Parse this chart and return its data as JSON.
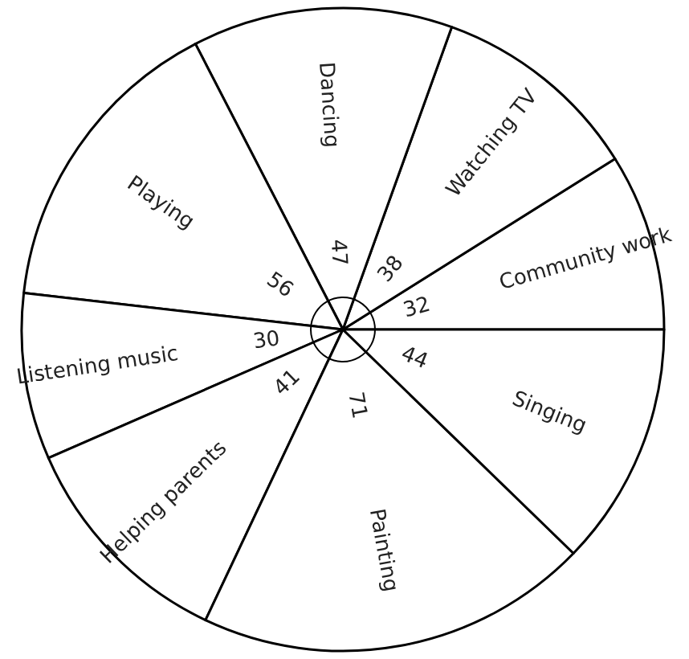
{
  "chart_data": {
    "type": "pie",
    "categories": [
      "Community work",
      "Watching TV",
      "Dancing",
      "Playing",
      "Listening music",
      "Helping parents",
      "Painting",
      "Singing"
    ],
    "values": [
      32,
      38,
      47,
      56,
      30,
      41,
      71,
      44
    ],
    "colors": [
      "#ffffff",
      "#ffffff",
      "#ffffff",
      "#ffffff",
      "#ffffff",
      "#ffffff",
      "#ffffff",
      "#ffffff"
    ],
    "data_labels": true
  }
}
